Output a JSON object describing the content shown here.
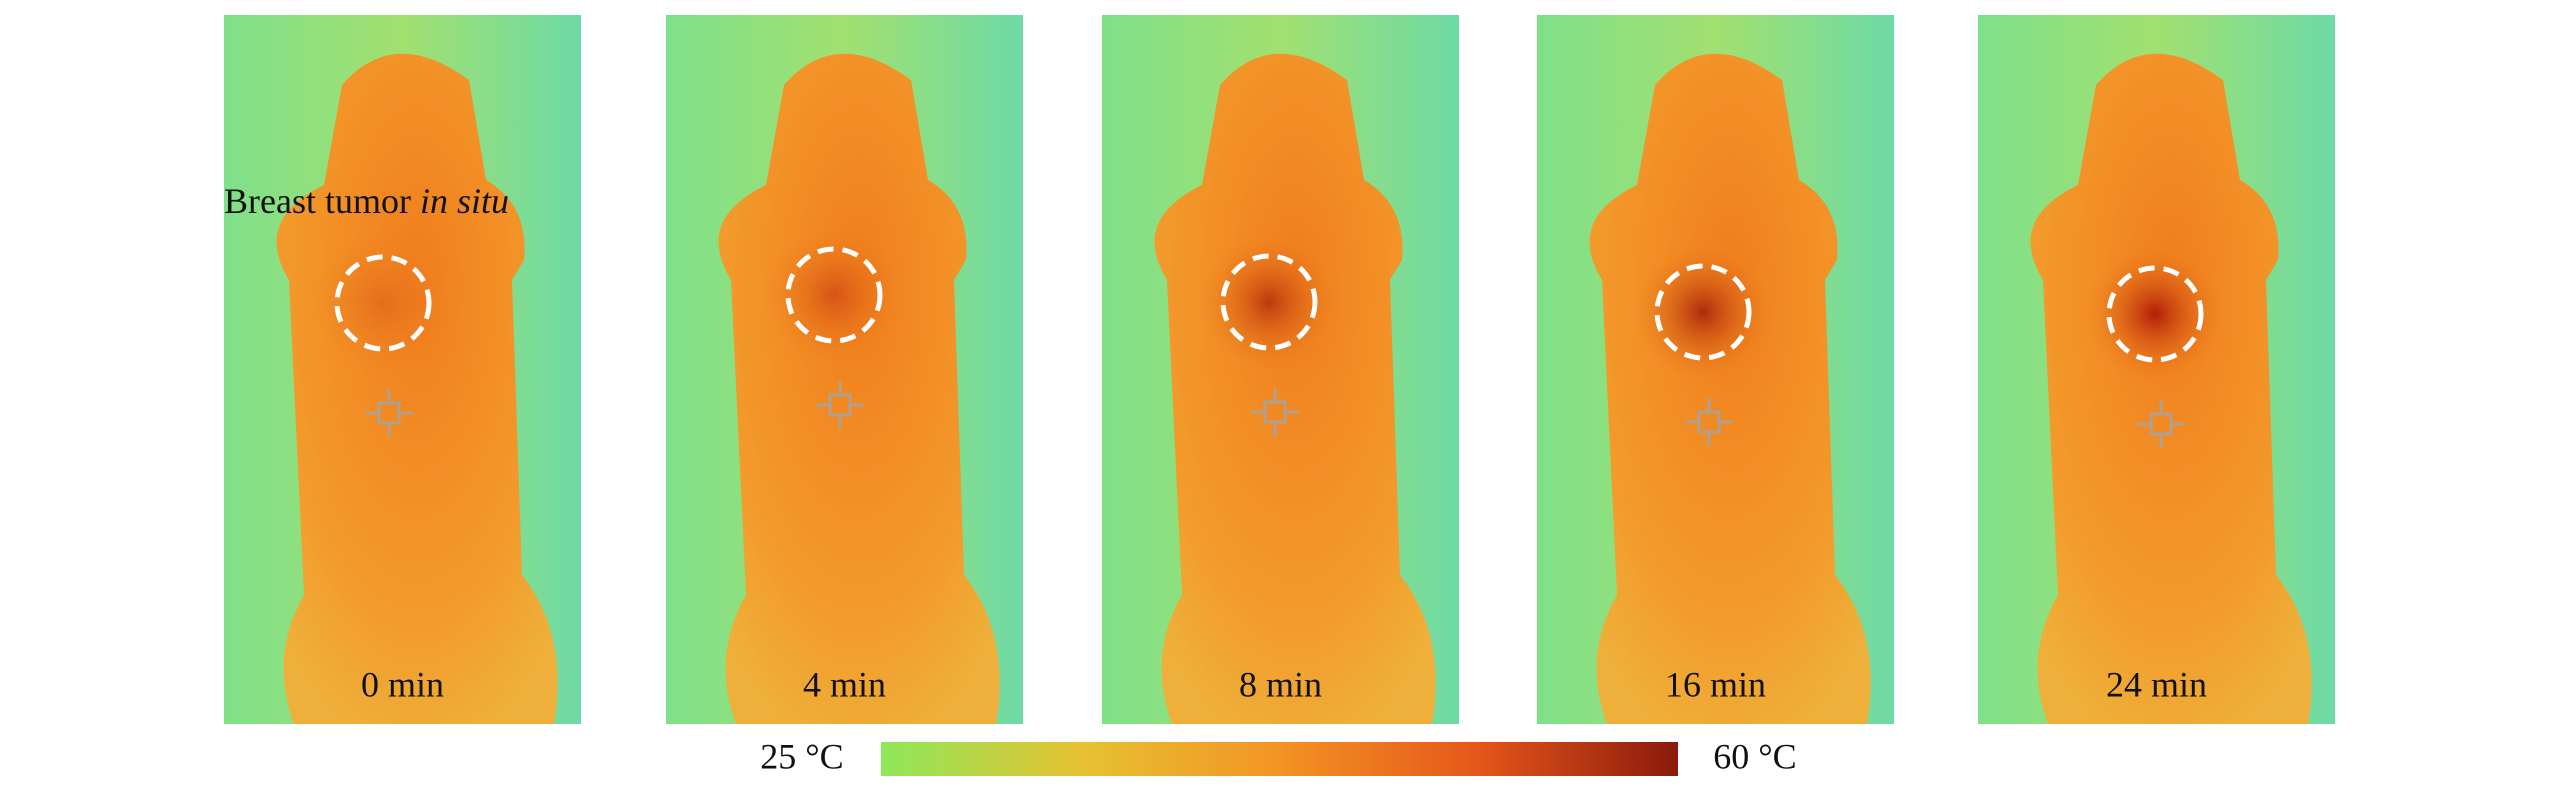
{
  "annotation": {
    "text": "Breast tumor",
    "italic": "in situ"
  },
  "panels": [
    {
      "label": "0 min"
    },
    {
      "label": "4 min"
    },
    {
      "label": "8 min"
    },
    {
      "label": "16 min"
    },
    {
      "label": "24 min"
    }
  ],
  "colorbar": {
    "min_label": "25 °C",
    "max_label": "60 °C"
  }
}
